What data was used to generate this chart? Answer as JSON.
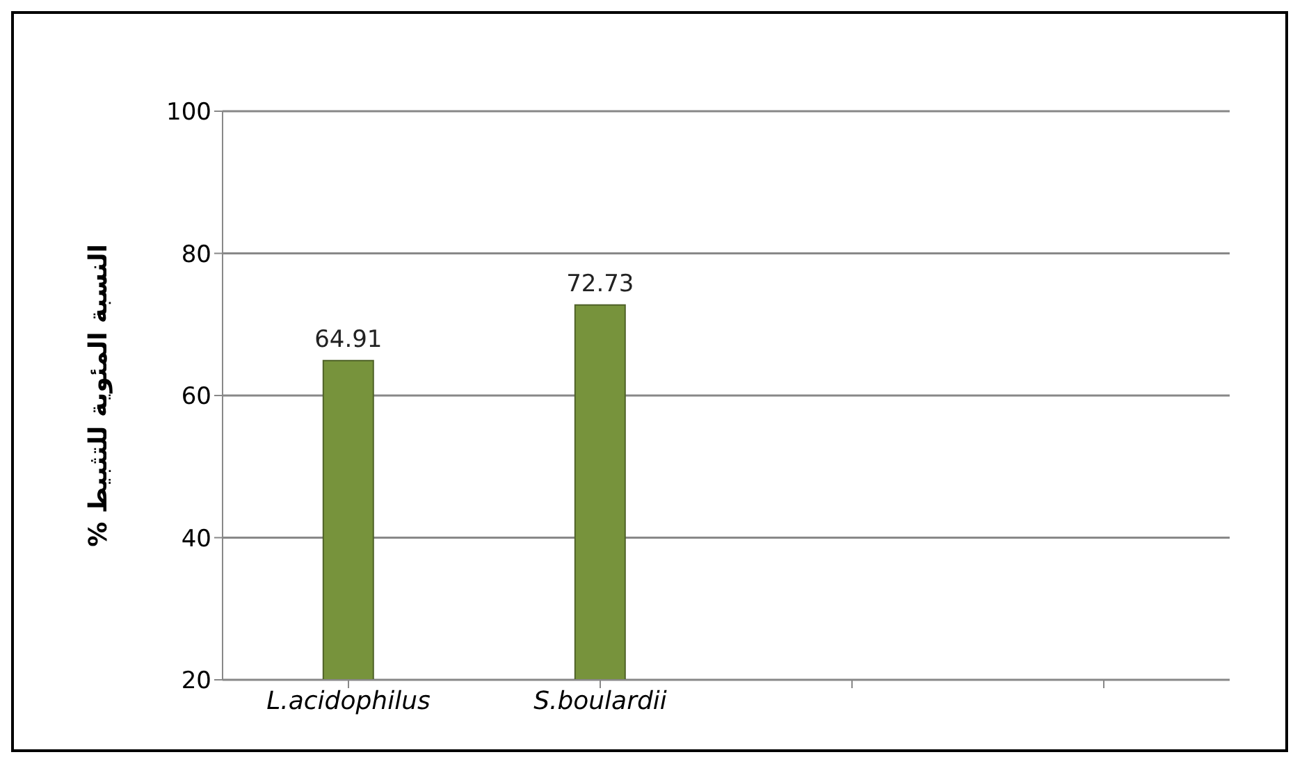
{
  "chart_data": {
    "type": "bar",
    "ylabel": "النسبة المئوية للتثبيط %",
    "categories": [
      "L.acidophilus",
      "S.boulardii",
      null,
      null
    ],
    "values": [
      64.91,
      72.73,
      null,
      null
    ],
    "color": "#77933c",
    "ylim": [
      20,
      100
    ],
    "yticks": [
      20,
      40,
      60,
      80,
      100
    ],
    "grid": "y",
    "data_labels": true
  }
}
